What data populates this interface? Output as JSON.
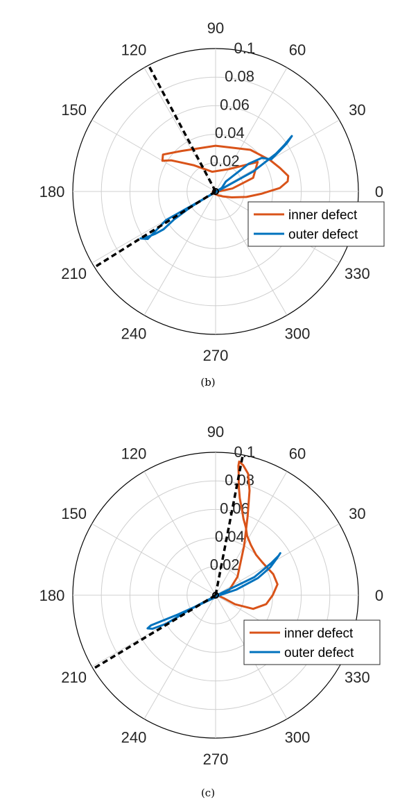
{
  "chart_data": [
    {
      "type": "polar",
      "panel": "b",
      "caption": "(b)",
      "theta_ticks": [
        "0",
        "30",
        "60",
        "90",
        "120",
        "150",
        "180",
        "210",
        "240",
        "270",
        "300",
        "330"
      ],
      "r_ticks": [
        "0.02",
        "0.04",
        "0.06",
        "0.08",
        "0.1"
      ],
      "rlim": [
        0,
        0.1
      ],
      "grid": true,
      "legend_position": "right",
      "series": [
        {
          "name": "inner defect",
          "color": "#D95319",
          "theta": [
            0,
            10,
            20,
            35,
            60,
            100,
            130,
            145,
            150,
            145,
            130,
            90,
            50,
            30,
            20,
            12,
            8,
            3,
            -3,
            -10,
            -20,
            -35,
            -60,
            -90,
            -120,
            180,
            0
          ],
          "r": [
            0.002,
            0.012,
            0.028,
            0.036,
            0.018,
            0.014,
            0.024,
            0.038,
            0.043,
            0.045,
            0.037,
            0.032,
            0.038,
            0.044,
            0.048,
            0.052,
            0.051,
            0.045,
            0.032,
            0.022,
            0.012,
            0.006,
            0.003,
            0.002,
            0.002,
            0.002,
            0.002
          ]
        },
        {
          "name": "outer defect",
          "color": "#0072BD",
          "theta": [
            0,
            28,
            32,
            34,
            35.5,
            36,
            34,
            32,
            30,
            36,
            40,
            44,
            30,
            212,
            214,
            216,
            215,
            214,
            213,
            212,
            215,
            210,
            212,
            0
          ],
          "r": [
            0.001,
            0.03,
            0.05,
            0.058,
            0.064,
            0.066,
            0.06,
            0.052,
            0.045,
            0.04,
            0.03,
            0.01,
            0.005,
            0.02,
            0.035,
            0.045,
            0.052,
            0.056,
            0.06,
            0.062,
            0.058,
            0.04,
            0.01,
            0.001
          ]
        }
      ],
      "dashed_lines": [
        {
          "angle": 118,
          "r": 0.1
        },
        {
          "angle": 212,
          "r": 0.1
        }
      ]
    },
    {
      "type": "polar",
      "panel": "c",
      "caption": "(c)",
      "theta_ticks": [
        "0",
        "30",
        "60",
        "90",
        "120",
        "150",
        "180",
        "210",
        "240",
        "270",
        "300",
        "330"
      ],
      "r_ticks": [
        "0.02",
        "0.04",
        "0.06",
        "0.08",
        "0.1"
      ],
      "rlim": [
        0,
        0.1
      ],
      "grid": true,
      "legend_position": "right",
      "series": [
        {
          "name": "inner defect",
          "color": "#D95319",
          "theta": [
            0,
            20,
            40,
            60,
            68,
            72,
            75,
            78,
            80,
            80,
            79,
            78,
            76,
            73,
            70,
            66,
            62,
            55,
            45,
            35,
            20,
            10,
            0,
            -10,
            -20,
            -25,
            -20,
            -10,
            0
          ],
          "r": [
            0.002,
            0.01,
            0.02,
            0.04,
            0.06,
            0.077,
            0.088,
            0.093,
            0.095,
            0.092,
            0.085,
            0.078,
            0.07,
            0.063,
            0.057,
            0.052,
            0.047,
            0.043,
            0.04,
            0.04,
            0.043,
            0.044,
            0.04,
            0.036,
            0.028,
            0.015,
            0.006,
            0.002,
            0.002
          ]
        },
        {
          "name": "outer defect",
          "color": "#0072BD",
          "theta": [
            0,
            25,
            30,
            32,
            33,
            31,
            27,
            22,
            15,
            0,
            210,
            207,
            205,
            206,
            208,
            210,
            209,
            0
          ],
          "r": [
            0.001,
            0.03,
            0.045,
            0.052,
            0.054,
            0.05,
            0.043,
            0.032,
            0.015,
            0.003,
            0.015,
            0.03,
            0.05,
            0.053,
            0.05,
            0.04,
            0.02,
            0.001
          ]
        }
      ],
      "dashed_lines": [
        {
          "angle": 79,
          "r": 0.1
        },
        {
          "angle": 211,
          "r": 0.1
        }
      ]
    }
  ]
}
